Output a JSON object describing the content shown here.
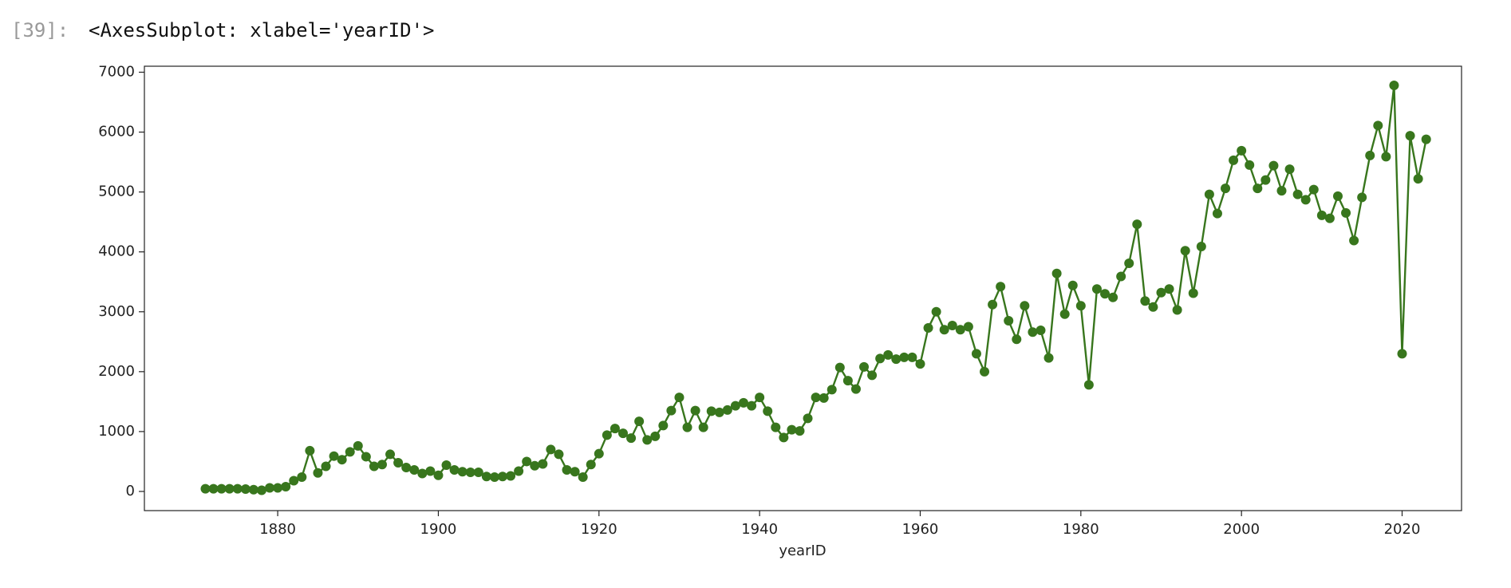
{
  "prompt": "[39]:",
  "output_text": "<AxesSubplot: xlabel='yearID'>",
  "chart_data": {
    "type": "line",
    "xlabel": "yearID",
    "color": "#38761d",
    "marker": "o",
    "x": [
      1871,
      1872,
      1873,
      1874,
      1875,
      1876,
      1877,
      1878,
      1879,
      1880,
      1881,
      1882,
      1883,
      1884,
      1885,
      1886,
      1887,
      1888,
      1889,
      1890,
      1891,
      1892,
      1893,
      1894,
      1895,
      1896,
      1897,
      1898,
      1899,
      1900,
      1901,
      1902,
      1903,
      1904,
      1905,
      1906,
      1907,
      1908,
      1909,
      1910,
      1911,
      1912,
      1913,
      1914,
      1915,
      1916,
      1917,
      1918,
      1919,
      1920,
      1921,
      1922,
      1923,
      1924,
      1925,
      1926,
      1927,
      1928,
      1929,
      1930,
      1931,
      1932,
      1933,
      1934,
      1935,
      1936,
      1937,
      1938,
      1939,
      1940,
      1941,
      1942,
      1943,
      1944,
      1945,
      1946,
      1947,
      1948,
      1949,
      1950,
      1951,
      1952,
      1953,
      1954,
      1955,
      1956,
      1957,
      1958,
      1959,
      1960,
      1961,
      1962,
      1963,
      1964,
      1965,
      1966,
      1967,
      1968,
      1969,
      1970,
      1971,
      1972,
      1973,
      1974,
      1975,
      1976,
      1977,
      1978,
      1979,
      1980,
      1981,
      1982,
      1983,
      1984,
      1985,
      1986,
      1987,
      1988,
      1989,
      1990,
      1991,
      1992,
      1993,
      1994,
      1995,
      1996,
      1997,
      1998,
      1999,
      2000,
      2001,
      2002,
      2003,
      2004,
      2005,
      2006,
      2007,
      2008,
      2009,
      2010,
      2011,
      2012,
      2013,
      2014,
      2015,
      2016,
      2017,
      2018,
      2019,
      2020,
      2021,
      2022,
      2023
    ],
    "values": [
      45,
      45,
      45,
      45,
      45,
      40,
      30,
      20,
      60,
      60,
      80,
      180,
      240,
      680,
      310,
      420,
      590,
      530,
      660,
      760,
      580,
      420,
      450,
      620,
      480,
      400,
      360,
      300,
      340,
      270,
      440,
      360,
      330,
      320,
      320,
      250,
      240,
      250,
      260,
      340,
      500,
      430,
      460,
      700,
      620,
      360,
      330,
      240,
      450,
      630,
      940,
      1050,
      970,
      890,
      1170,
      860,
      920,
      1100,
      1350,
      1570,
      1070,
      1350,
      1070,
      1340,
      1320,
      1360,
      1430,
      1480,
      1430,
      1570,
      1340,
      1070,
      900,
      1030,
      1010,
      1220,
      1570,
      1560,
      1700,
      2070,
      1850,
      1710,
      2080,
      1940,
      2220,
      2280,
      2210,
      2240,
      2240,
      2130,
      2730,
      3000,
      2700,
      2770,
      2700,
      2750,
      2300,
      2000,
      3120,
      3420,
      2850,
      2540,
      3100,
      2660,
      2690,
      2230,
      3640,
      2960,
      3440,
      3100,
      1780,
      3380,
      3300,
      3240,
      3590,
      3810,
      4460,
      3180,
      3080,
      3320,
      3380,
      3030,
      4020,
      3310,
      4090,
      4960,
      4640,
      5060,
      5530,
      5690,
      5450,
      5060,
      5200,
      5440,
      5020,
      5380,
      4960,
      4870,
      5040,
      4610,
      4560,
      4930,
      4650,
      4190,
      4910,
      5610,
      6110,
      5590,
      6780,
      2300,
      5940,
      5220,
      5880
    ],
    "xlim": [
      1863.4,
      2027.4
    ],
    "ylim": [
      -320,
      7100
    ],
    "xticks": [
      1880,
      1900,
      1920,
      1940,
      1960,
      1980,
      2000,
      2020
    ],
    "yticks": [
      0,
      1000,
      2000,
      3000,
      4000,
      5000,
      6000,
      7000
    ]
  }
}
